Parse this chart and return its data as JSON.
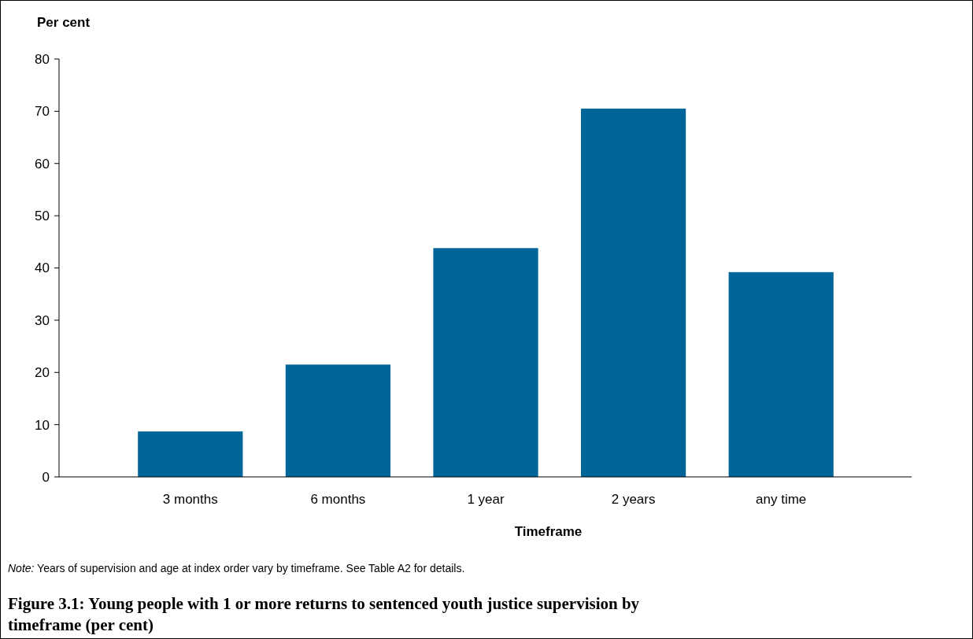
{
  "chart_data": {
    "type": "bar",
    "title": "Figure 3.1: Young people with 1 or more returns to sentenced youth justice supervision by timeframe (per cent)",
    "xlabel": "Timeframe",
    "ylabel": "Per cent",
    "categories": [
      "3 months",
      "6 months",
      "1 year",
      "2 years",
      "any time"
    ],
    "values": [
      8.7,
      21.5,
      43.8,
      70.5,
      39.2
    ],
    "color": "#006699",
    "ylim": [
      0,
      80
    ],
    "yticks": [
      0,
      10,
      20,
      30,
      40,
      50,
      60,
      70,
      80
    ],
    "grid": false,
    "annotations": [
      "Note: Years of supervision and age at index order vary by timeframe. See Table A2 for details."
    ]
  }
}
